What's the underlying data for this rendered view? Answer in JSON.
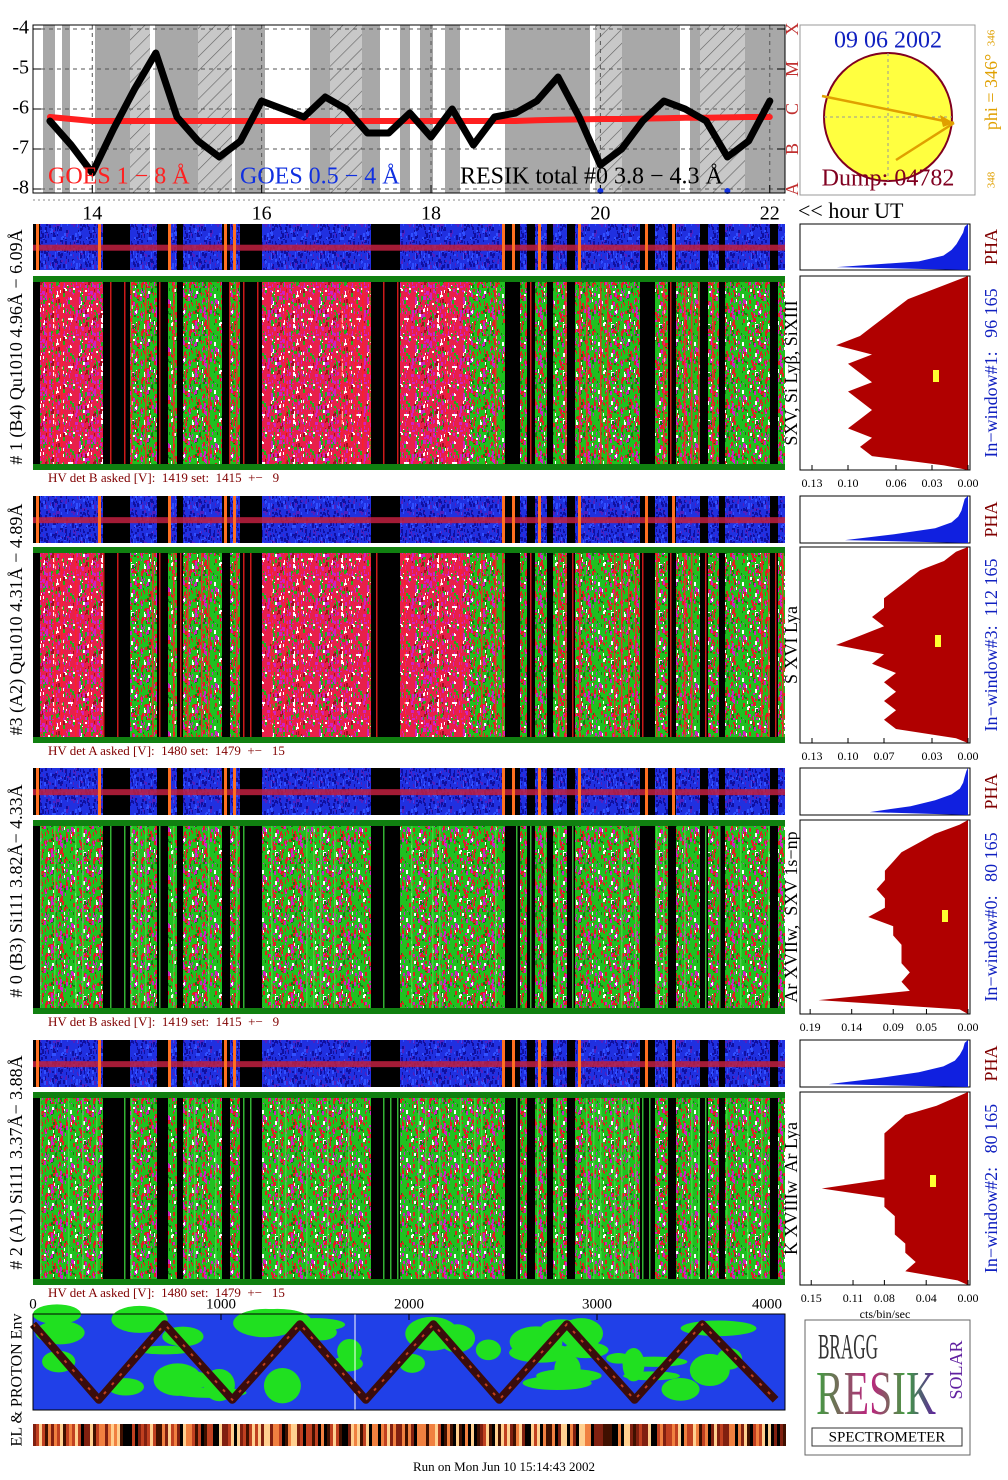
{
  "chart_data": [
    {
      "type": "line",
      "xlabel": "<< hour UT",
      "x": [
        13.5,
        13.75,
        14,
        14.25,
        14.5,
        14.75,
        15,
        15.25,
        15.5,
        15.75,
        16,
        16.25,
        16.5,
        16.75,
        17,
        17.25,
        17.5,
        17.75,
        18,
        18.25,
        18.5,
        18.75,
        19,
        19.25,
        19.5,
        19.75,
        20,
        20.25,
        20.5,
        20.75,
        21,
        21.25,
        21.5,
        21.75,
        22
      ],
      "series": [
        {
          "name": "GOES 1 − 8 Å",
          "color": "#ff2020",
          "values": [
            -6.2,
            -6.25,
            -6.3,
            -6.3,
            -6.3,
            -6.3,
            -6.3,
            -6.3,
            -6.3,
            -6.3,
            -6.3,
            -6.3,
            -6.3,
            -6.3,
            -6.3,
            -6.3,
            -6.3,
            -6.3,
            -6.3,
            -6.3,
            -6.3,
            -6.3,
            -6.3,
            -6.28,
            -6.27,
            -6.26,
            -6.25,
            -6.25,
            -6.24,
            -6.23,
            -6.22,
            -6.22,
            -6.21,
            -6.2,
            -6.2
          ]
        },
        {
          "name": "GOES 0.5 − 4 Å",
          "color": "#1030e0",
          "values": [
            null,
            null,
            null,
            null,
            null,
            null,
            null,
            null,
            null,
            null,
            null,
            null,
            null,
            null,
            null,
            null,
            null,
            null,
            null,
            null,
            null,
            null,
            null,
            null,
            null,
            null,
            -8.05,
            null,
            null,
            null,
            null,
            null,
            -8.05,
            null,
            null
          ]
        },
        {
          "name": "RESIK total #0  3.8 − 4.3 Å",
          "color": "#000000",
          "values": [
            -6.3,
            -6.9,
            -7.6,
            -6.5,
            -5.5,
            -4.6,
            -6.2,
            -6.8,
            -7.2,
            -6.8,
            -5.8,
            -6.0,
            -6.2,
            -5.7,
            -6.0,
            -6.6,
            -6.6,
            -6.1,
            -6.7,
            -6.0,
            -6.9,
            -6.2,
            -6.1,
            -5.8,
            -5.2,
            -6.2,
            -7.4,
            -7.0,
            -6.3,
            -5.8,
            -6.0,
            -6.3,
            -7.2,
            -6.8,
            -5.8
          ]
        }
      ],
      "xlim": [
        13.3,
        22.18
      ],
      "xticks": [
        14,
        16,
        18,
        20,
        22
      ],
      "ylim": [
        -8.1,
        -3.9
      ],
      "yticks": [
        -8,
        -7,
        -6,
        -5,
        -4
      ],
      "y2lim": [
        -8.1,
        -3.9
      ],
      "y2ticks": [
        {
          "value": -8,
          "label": "A"
        },
        {
          "value": -7,
          "label": "B"
        },
        {
          "value": -6,
          "label": "C"
        },
        {
          "value": -5,
          "label": "M"
        },
        {
          "value": -4,
          "label": "X"
        }
      ],
      "grid": true
    },
    {
      "type": "area",
      "color": "#b00000",
      "pha_color": "#1020e0",
      "values": [
        0.01,
        0.03,
        0.05,
        0.06,
        0.07,
        0.08,
        0.09,
        0.11,
        0.08,
        0.1,
        0.09,
        0.08,
        0.1,
        0.09,
        0.08,
        0.09,
        0.1,
        0.08,
        0.09,
        0.08,
        0.02
      ],
      "pha_values": [
        0.02,
        0.03,
        0.05,
        0.07,
        0.1,
        0.15,
        0.3,
        0.8
      ],
      "xlim": [
        0.135,
        0
      ],
      "xticks": [
        0.13,
        {
          "value": 0.1,
          "label": "0.10"
        },
        0.06,
        0.03,
        {
          "value": 0,
          "label": "0.00"
        }
      ]
    },
    {
      "type": "area",
      "color": "#b00000",
      "pha_color": "#1020e0",
      "values": [
        0.01,
        0.02,
        0.04,
        0.05,
        0.06,
        0.07,
        0.07,
        0.08,
        0.07,
        0.09,
        0.11,
        0.07,
        0.08,
        0.06,
        0.07,
        0.06,
        0.07,
        0.06,
        0.07,
        0.06,
        0.01
      ],
      "pha_values": [
        0.02,
        0.03,
        0.04,
        0.06,
        0.1,
        0.2,
        0.45,
        0.75
      ],
      "xlim": [
        0.135,
        0
      ],
      "xticks": [
        0.13,
        {
          "value": 0.1,
          "label": "0.10"
        },
        0.07,
        0.03,
        {
          "value": 0,
          "label": "0.00"
        }
      ]
    },
    {
      "type": "area",
      "color": "#b00000",
      "pha_color": "#1020e0",
      "values": [
        0.01,
        0.04,
        0.06,
        0.08,
        0.09,
        0.1,
        0.1,
        0.11,
        0.1,
        0.1,
        0.12,
        0.09,
        0.09,
        0.08,
        0.08,
        0.08,
        0.07,
        0.08,
        0.07,
        0.18,
        0.01
      ],
      "pha_values": [
        0.01,
        0.02,
        0.03,
        0.05,
        0.1,
        0.2,
        0.35,
        0.6
      ],
      "xlim": [
        0.195,
        0
      ],
      "xticks": [
        0.19,
        0.14,
        0.09,
        0.05,
        {
          "value": 0,
          "label": "0.00"
        }
      ]
    },
    {
      "type": "area",
      "color": "#b00000",
      "pha_color": "#1020e0",
      "values": [
        0.01,
        0.03,
        0.06,
        0.07,
        0.08,
        0.08,
        0.08,
        0.08,
        0.08,
        0.08,
        0.14,
        0.08,
        0.08,
        0.07,
        0.07,
        0.07,
        0.06,
        0.06,
        0.05,
        0.06,
        0.01
      ],
      "pha_values": [
        0.02,
        0.03,
        0.05,
        0.08,
        0.15,
        0.3,
        0.55,
        0.85
      ],
      "xlim": [
        0.155,
        0
      ],
      "xlabel": "cts/bin/sec",
      "xticks": [
        0.15,
        0.11,
        0.08,
        0.04,
        {
          "value": 0,
          "label": "0.00"
        }
      ]
    },
    {
      "type": "line",
      "ylabel": "EL & PROTON Env",
      "series": [
        {
          "color": "#3a0c0c",
          "x": [
            0,
            350,
            700,
            1060,
            1420,
            1770,
            2130,
            2480,
            2840,
            3200,
            3560,
            3950
          ],
          "values": [
            0.95,
            0.05,
            0.95,
            0.05,
            0.95,
            0.05,
            0.95,
            0.05,
            0.95,
            0.05,
            0.95,
            0.05
          ]
        }
      ],
      "xlim": [
        0,
        4000
      ],
      "xticks": [
        0,
        1000,
        2000,
        3000,
        4000
      ],
      "ylim": [
        0,
        1
      ]
    }
  ],
  "sun_panel": {
    "date": "09 06 2002",
    "phi": "phi = 346°",
    "phi_small": "346",
    "phi_small2": "348",
    "dump": "Dump: 04782"
  },
  "spectra": [
    {
      "label": "# 1 (B4) Qu1010 4.96Å − 6.09Å",
      "lines": "SXV, Si Lyβ, SiXIII",
      "window": "In−window#1:   96 165",
      "pha": "PHA",
      "hv": "HV det B asked [V]:  1419 set:  1415  +−   9"
    },
    {
      "label": "#3 (A2) Qu1010  4.31Å − 4.89Å",
      "lines": "S XVI Lya",
      "window": "In−window#3:  112 165",
      "pha": "PHA",
      "hv": "HV det A asked [V]:  1480 set:  1479  +−   15"
    },
    {
      "label": "# 0 (B3) Si111  3.82Å− 4.33Å",
      "lines": "Ar XVIIw,  SXV 1s−np",
      "window": "In−window#0:   80 165",
      "pha": "PHA",
      "hv": "HV det B asked [V]:  1419 set:  1415  +−   9"
    },
    {
      "label": "# 2 (A1) Si111  3.37Å− 3.88Å",
      "lines": "K XVIIIw  Ar Lya",
      "window": "In−window#2:   80 165",
      "pha": "PHA",
      "hv": "HV det A asked [V]:  1480 set:  1479  +−   15"
    }
  ],
  "logo": {
    "word1": "BRAGG",
    "word2": "RESIK",
    "word3": "SOLAR",
    "name": "SPECTROMETER"
  },
  "footer": "Run on Mon Jun 10 15:14:43 2002"
}
